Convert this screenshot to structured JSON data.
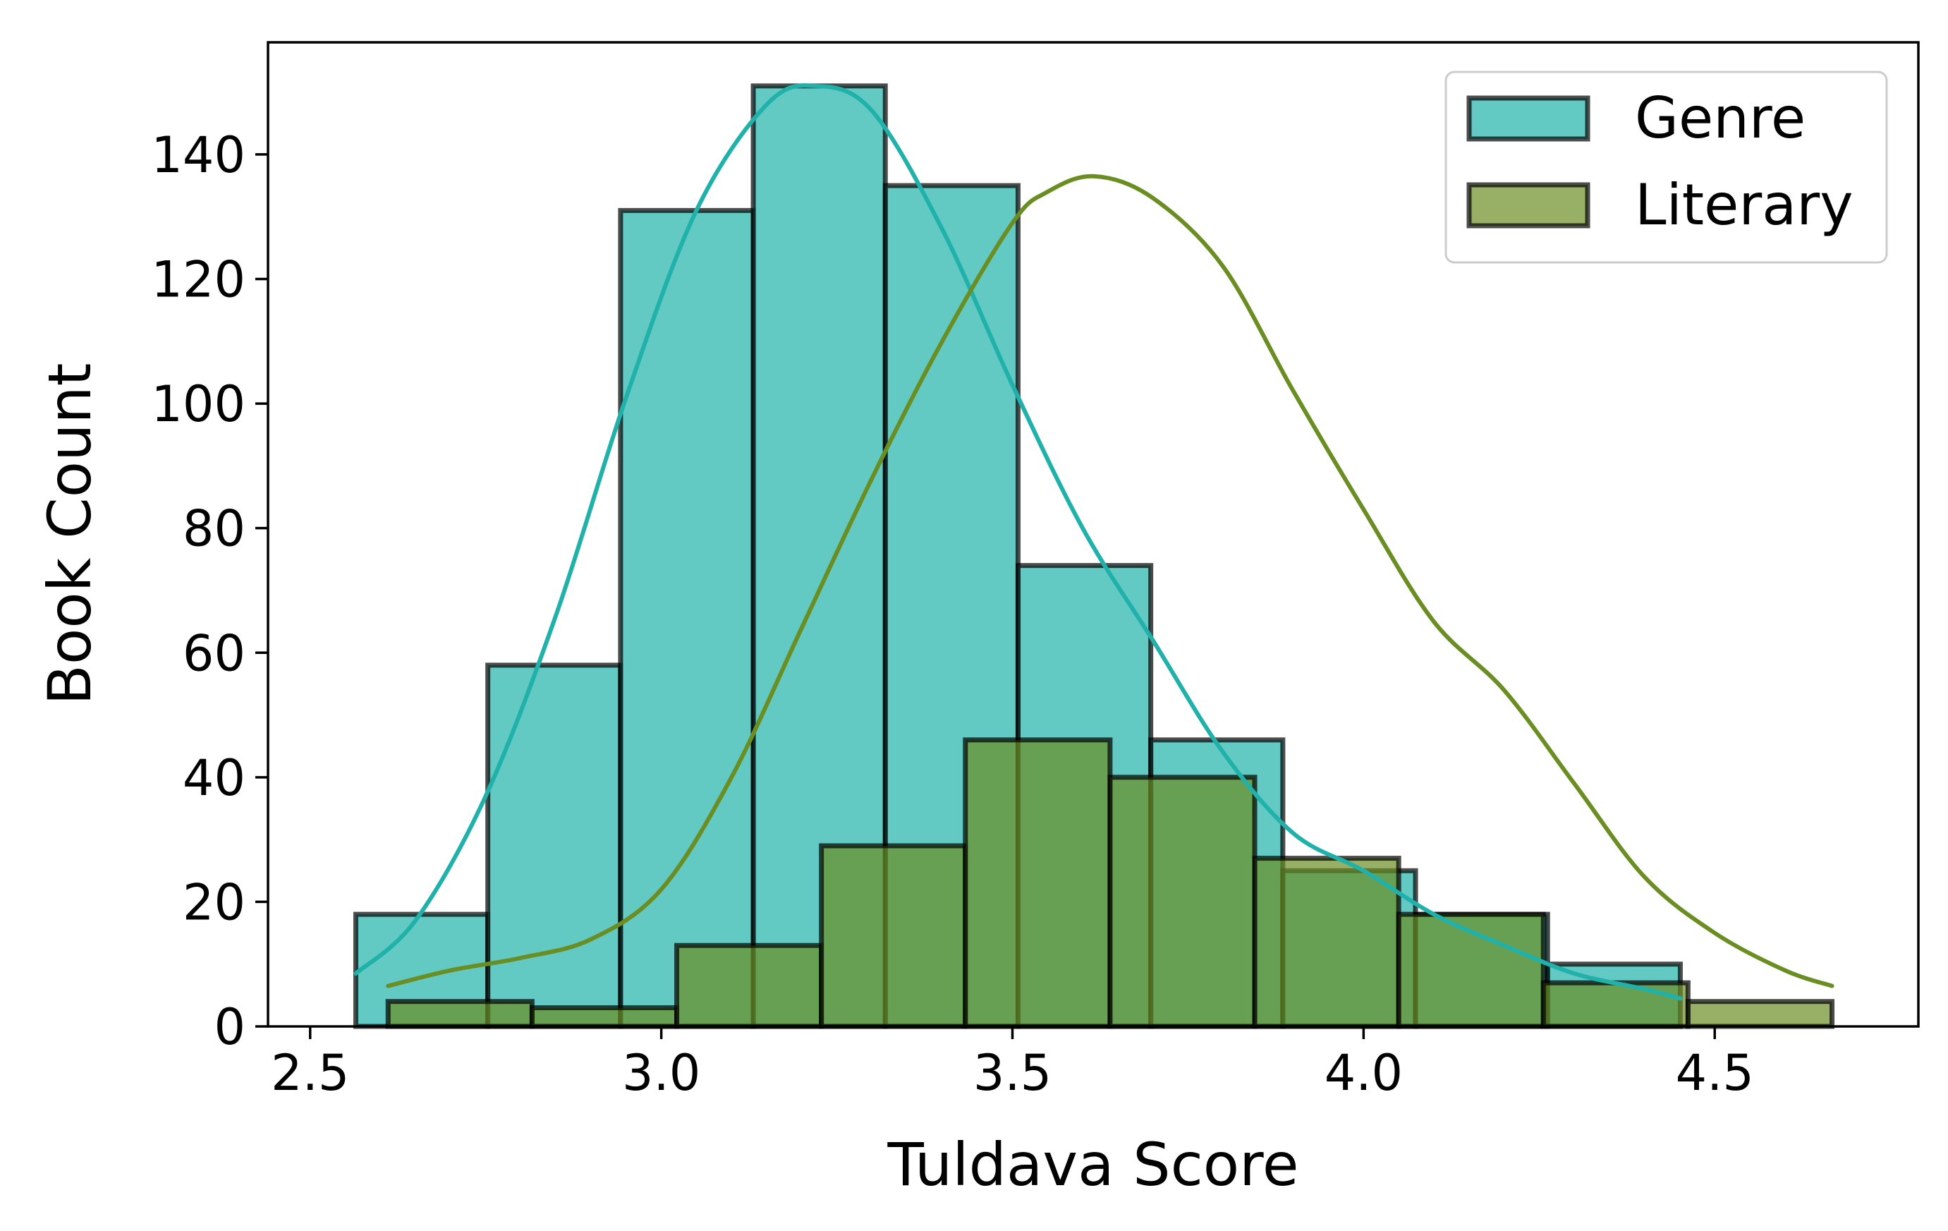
{
  "chart_data": {
    "type": "histogram",
    "xlabel": "Tuldava Score",
    "ylabel": "Book Count",
    "xlim": [
      2.44,
      4.79
    ],
    "ylim": [
      0,
      158
    ],
    "xticks": [
      2.5,
      3.0,
      3.5,
      4.0,
      4.5
    ],
    "xtick_labels": [
      "2.5",
      "3.0",
      "3.5",
      "4.0",
      "4.5"
    ],
    "yticks": [
      0,
      20,
      40,
      60,
      80,
      100,
      120,
      140
    ],
    "ytick_labels": [
      "0",
      "20",
      "40",
      "60",
      "80",
      "100",
      "120",
      "140"
    ],
    "grid": false,
    "legend_position": "top-right",
    "series": [
      {
        "name": "Genre",
        "color": "#20b2aa",
        "fill_opacity": 0.7,
        "bin_edges": [
          2.565,
          2.753,
          2.942,
          3.131,
          3.319,
          3.508,
          3.697,
          3.885,
          4.074,
          4.262,
          4.451
        ],
        "counts": [
          18,
          58,
          131,
          151,
          135,
          74,
          46,
          25,
          18,
          10
        ],
        "kde": [
          [
            2.565,
            8.5
          ],
          [
            2.65,
            17
          ],
          [
            2.75,
            37
          ],
          [
            2.85,
            66
          ],
          [
            2.95,
            101
          ],
          [
            3.05,
            131
          ],
          [
            3.15,
            148
          ],
          [
            3.22,
            151
          ],
          [
            3.3,
            147
          ],
          [
            3.4,
            128
          ],
          [
            3.5,
            103
          ],
          [
            3.6,
            80
          ],
          [
            3.7,
            62
          ],
          [
            3.8,
            44
          ],
          [
            3.9,
            31
          ],
          [
            4.0,
            25
          ],
          [
            4.1,
            18
          ],
          [
            4.2,
            13
          ],
          [
            4.3,
            8.5
          ],
          [
            4.4,
            6
          ],
          [
            4.451,
            4.5
          ]
        ]
      },
      {
        "name": "Literary",
        "color": "#6b8e23",
        "fill_opacity": 0.7,
        "bin_edges": [
          2.611,
          2.816,
          3.022,
          3.228,
          3.433,
          3.639,
          3.845,
          4.05,
          4.256,
          4.462,
          4.667
        ],
        "counts": [
          4,
          3,
          13,
          29,
          46,
          40,
          27,
          18,
          7,
          4
        ],
        "kde": [
          [
            2.611,
            6.5
          ],
          [
            2.7,
            9
          ],
          [
            2.8,
            11
          ],
          [
            2.9,
            14
          ],
          [
            3.0,
            22
          ],
          [
            3.1,
            40
          ],
          [
            3.2,
            64
          ],
          [
            3.3,
            88
          ],
          [
            3.4,
            110
          ],
          [
            3.5,
            129
          ],
          [
            3.55,
            134
          ],
          [
            3.617,
            136.5
          ],
          [
            3.7,
            133
          ],
          [
            3.8,
            122
          ],
          [
            3.9,
            102
          ],
          [
            4.0,
            83
          ],
          [
            4.1,
            65
          ],
          [
            4.2,
            54
          ],
          [
            4.3,
            39
          ],
          [
            4.4,
            24
          ],
          [
            4.5,
            15
          ],
          [
            4.6,
            9
          ],
          [
            4.667,
            6.5
          ]
        ]
      }
    ]
  }
}
